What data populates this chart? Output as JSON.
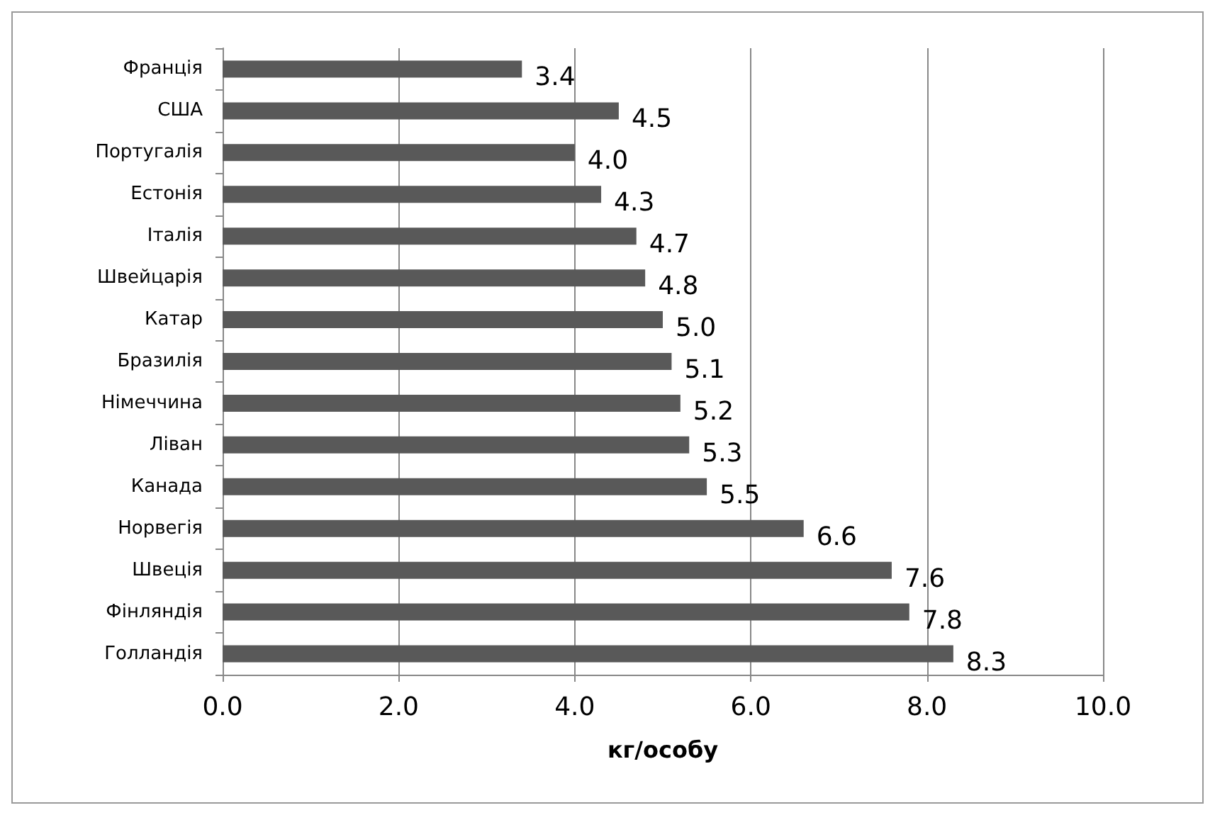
{
  "chart_data": {
    "type": "bar",
    "orientation": "horizontal",
    "xlabel": "кг/особу",
    "categories": [
      "Франція",
      "США",
      "Португалія",
      "Естонія",
      "Італія",
      "Швейцарія",
      "Катар",
      "Бразилія",
      "Німеччина",
      "Ліван",
      "Канада",
      "Норвегія",
      "Швеція",
      "Фінляндія",
      "Голландія"
    ],
    "values": [
      3.4,
      4.5,
      4.0,
      4.3,
      4.7,
      4.8,
      5.0,
      5.1,
      5.2,
      5.3,
      5.5,
      6.6,
      7.6,
      7.8,
      8.3
    ],
    "value_labels": [
      "3.4",
      "4.5",
      "4.0",
      "4.3",
      "4.7",
      "4.8",
      "5.0",
      "5.1",
      "5.2",
      "5.3",
      "5.5",
      "6.6",
      "7.6",
      "7.8",
      "8.3"
    ],
    "color": "#595959",
    "xlim": [
      0,
      10
    ],
    "xticks": [
      {
        "value": 0,
        "label": "0.0"
      },
      {
        "value": 2,
        "label": "2.0"
      },
      {
        "value": 4,
        "label": "4.0"
      },
      {
        "value": 6,
        "label": "6.0"
      },
      {
        "value": 8,
        "label": "8.0"
      },
      {
        "value": 10,
        "label": "10.0"
      }
    ],
    "grid": "x"
  }
}
